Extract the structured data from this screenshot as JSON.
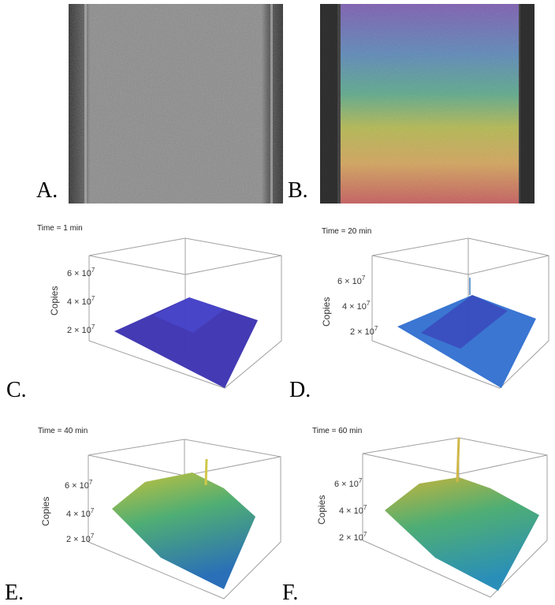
{
  "panels": {
    "A": {
      "label": "A."
    },
    "B": {
      "label": "B."
    },
    "C": {
      "label": "C.",
      "time": "Time = 1 min"
    },
    "D": {
      "label": "D.",
      "time": "Time = 20 min"
    },
    "E": {
      "label": "E.",
      "time": "Time = 40 min"
    },
    "F": {
      "label": "F.",
      "time": "Time = 60 min"
    }
  },
  "axis": {
    "ylabel": "Copies",
    "ticks": [
      "6 × 10",
      "4 × 10",
      "2 × 10"
    ],
    "exponent": "7"
  },
  "colors": {
    "surface_early": "#3a2fb0",
    "surface_mid": "#2f6fd0",
    "surface_late_high": "#c8c23a",
    "surface_late_low": "#2a8fb8",
    "box": "#9a9a9a"
  }
}
